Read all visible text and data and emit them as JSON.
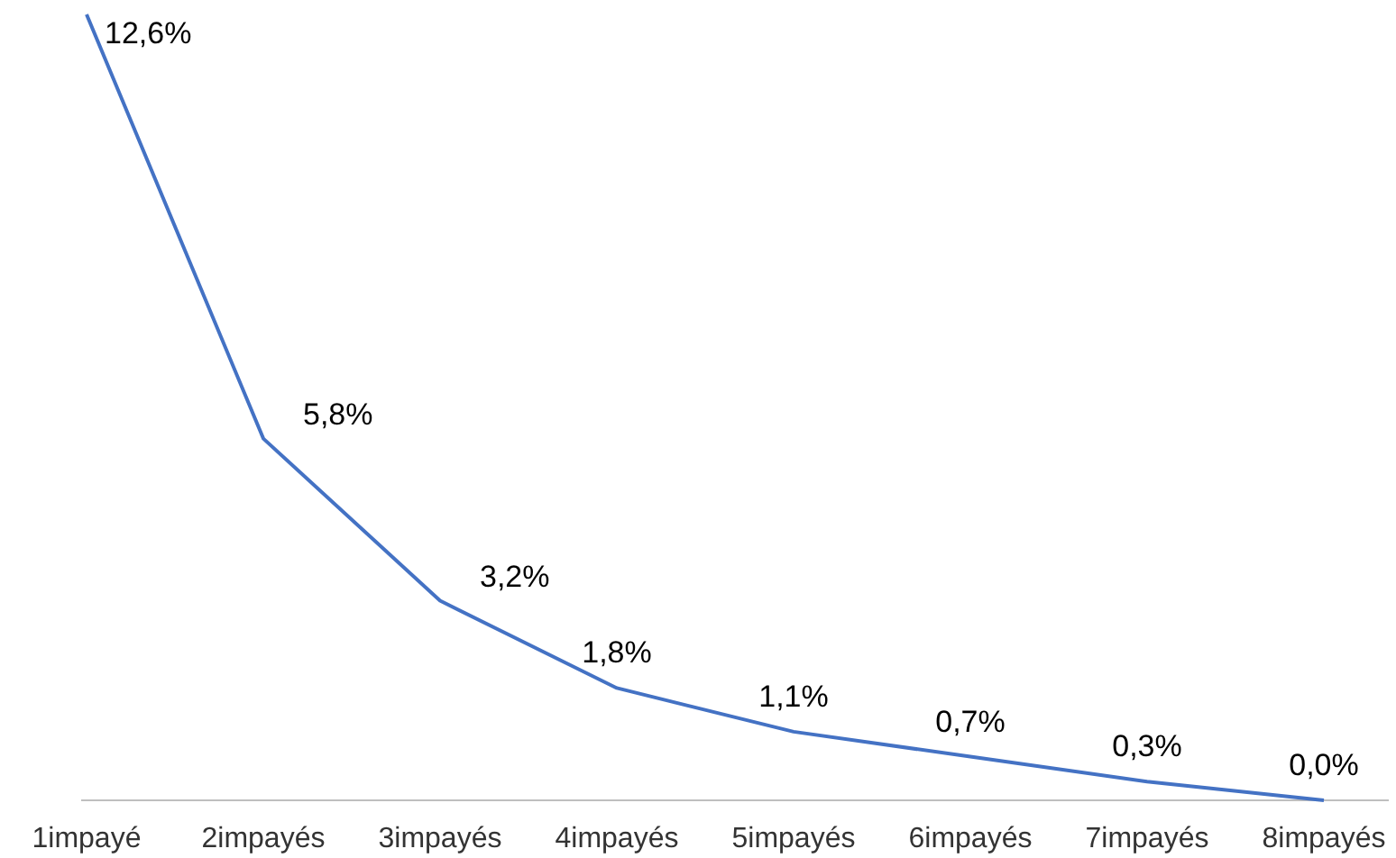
{
  "chart_data": {
    "type": "line",
    "categories": [
      "1impayé",
      "2impayés",
      "3impayés",
      "4impayés",
      "5impayés",
      "6impayés",
      "7impayés",
      "8impayés"
    ],
    "series": [
      {
        "color": "#4472c4",
        "values": [
          12.6,
          5.8,
          3.2,
          1.8,
          1.1,
          0.7,
          0.3,
          0.0
        ],
        "value_labels": [
          "12,6%",
          "5,8%",
          "3,2%",
          "1,8%",
          "1,1%",
          "0,7%",
          "0,3%",
          "0,0%"
        ]
      }
    ]
  }
}
